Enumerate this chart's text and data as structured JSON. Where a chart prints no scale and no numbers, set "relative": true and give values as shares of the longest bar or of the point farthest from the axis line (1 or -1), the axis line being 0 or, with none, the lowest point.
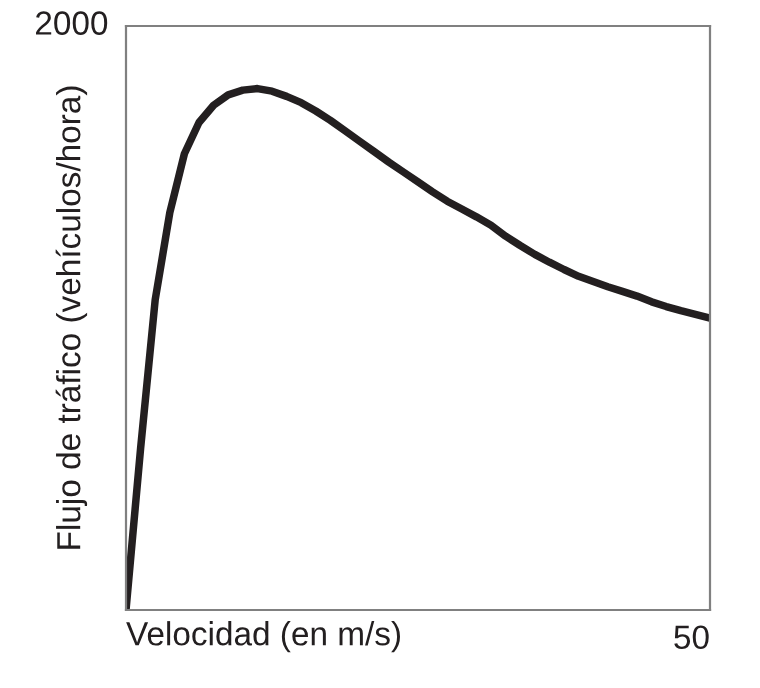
{
  "chart_data": {
    "type": "line",
    "relative": true,
    "xlabel": "Velocidad (en m/s)",
    "ylabel": "Flujo de tráfico (vehículos/hora)",
    "annotations": [
      "2000",
      "50"
    ],
    "categories": [
      null,
      null,
      null,
      null,
      null,
      null,
      null,
      null,
      null,
      null,
      null,
      null,
      null,
      null,
      null,
      null,
      null,
      null,
      null,
      null,
      null,
      null,
      null,
      null,
      null,
      null,
      null,
      null,
      null,
      null,
      null,
      null,
      null,
      null,
      null,
      null,
      null,
      null,
      null,
      null,
      null
    ],
    "series": [
      {
        "color": "#231f20",
        "values": [
          0,
          0.31,
          0.595,
          0.762,
          0.875,
          0.935,
          0.968,
          0.988,
          0.997,
          1,
          0.995,
          0.985,
          0.973,
          0.957,
          0.939,
          0.919,
          0.899,
          0.879,
          0.859,
          0.84,
          0.821,
          0.802,
          0.784,
          0.769,
          0.754,
          0.738,
          0.717,
          0.699,
          0.682,
          0.667,
          0.653,
          0.64,
          0.63,
          0.62,
          0.611,
          0.602,
          0.591,
          0.582,
          0.574,
          0.567,
          0.56
        ]
      }
    ],
    "marker": "none",
    "line_style": "solid"
  }
}
